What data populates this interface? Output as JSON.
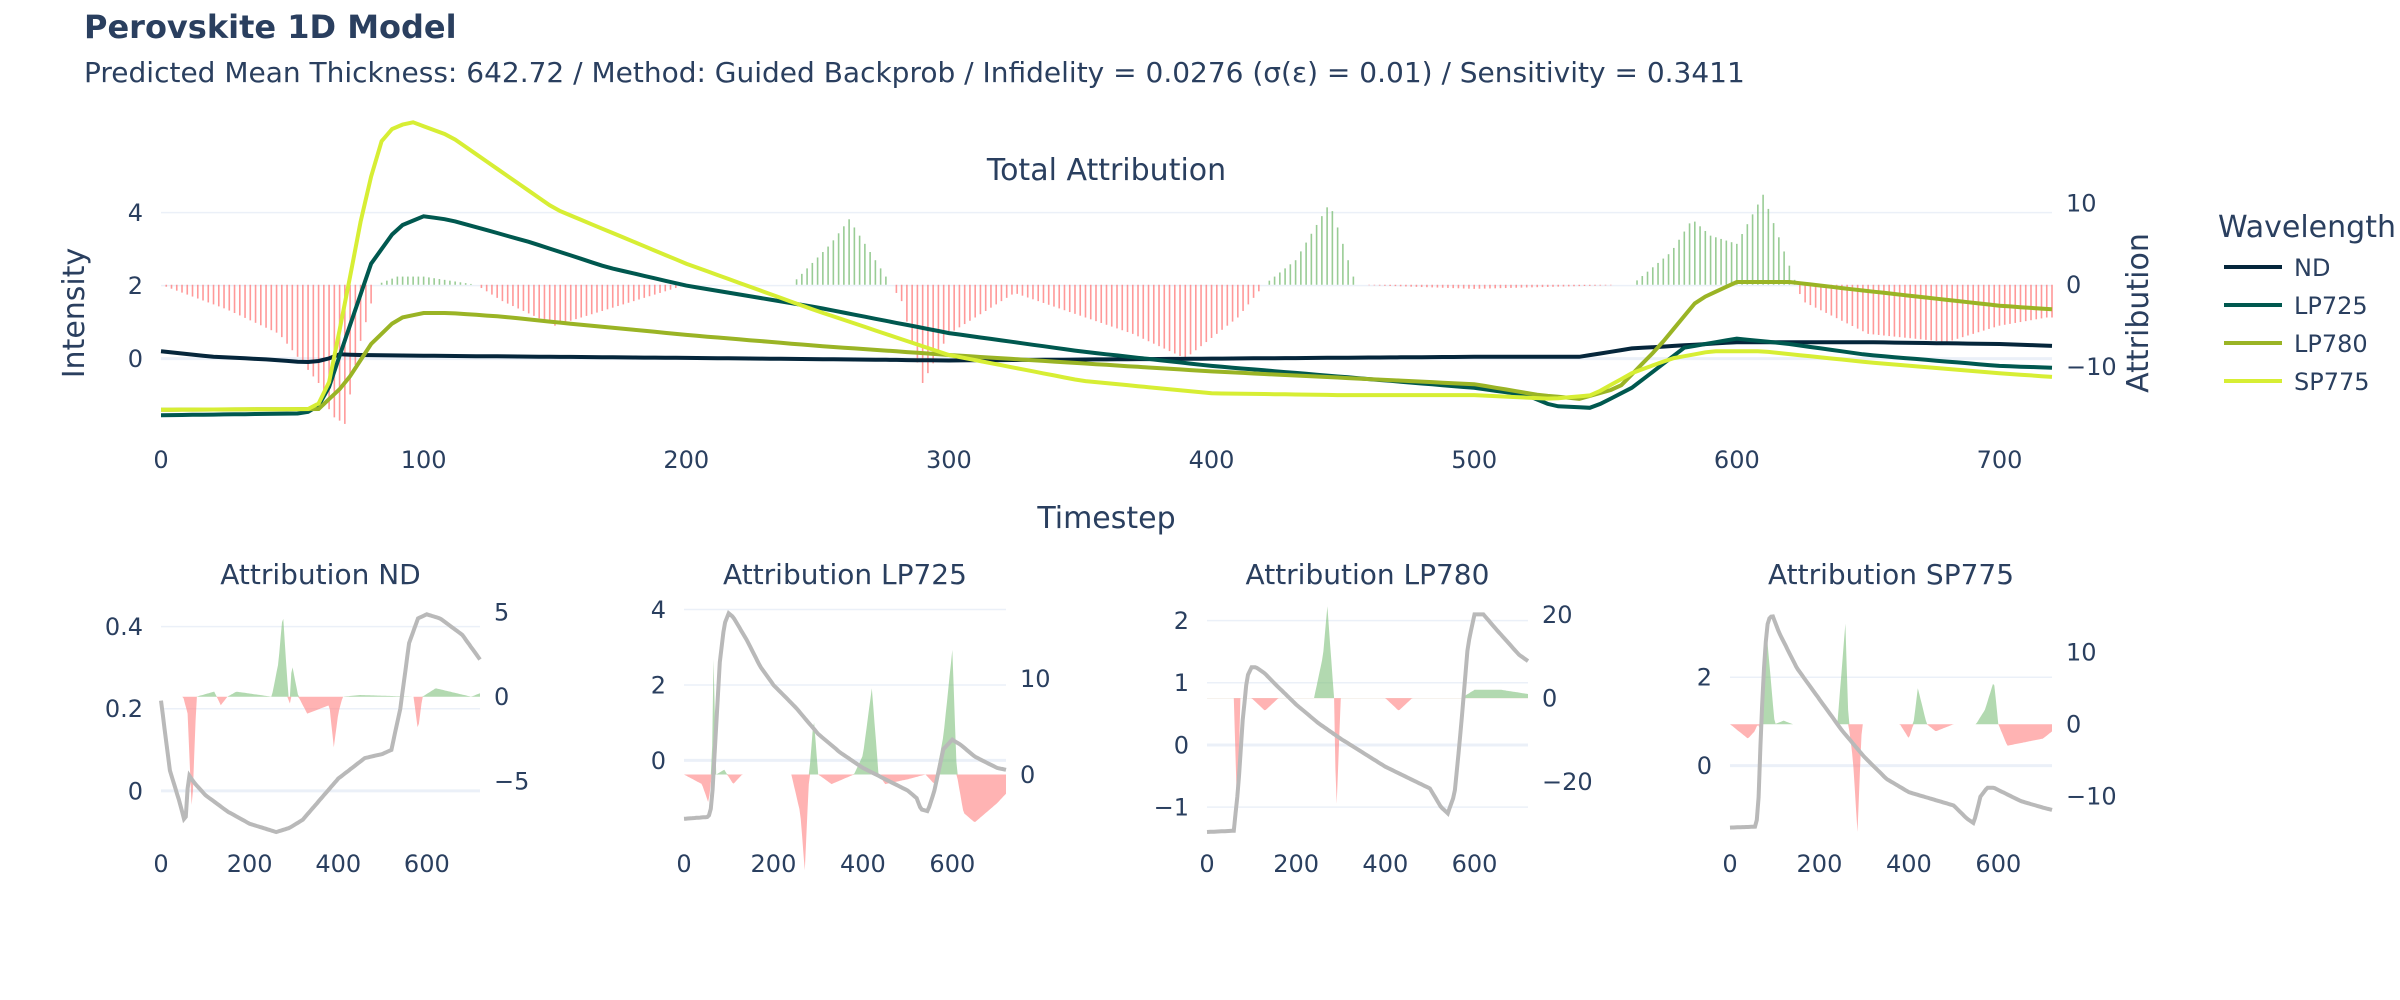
{
  "title": "Perovskite 1D Model",
  "subtitle": "Predicted Mean Thickness: 642.72 / Method: Guided Backprob / Infidelity = 0.0276 (σ(ε) = 0.01) / Sensitivity = 0.3411",
  "colors": {
    "ND": "#05263b",
    "LP725": "#00584f",
    "LP780": "#9ab425",
    "SP775": "#d7ee34",
    "positive": "#7fbf7b",
    "negative": "#ff8080",
    "intensity": "#b9b9b9"
  },
  "chart_data": [
    {
      "type": "line+bar",
      "title": "Total Attribution",
      "xlabel": "Timestep",
      "ylabel": "Intensity",
      "y2label": "Attribution",
      "xlim": [
        0,
        720
      ],
      "ylim": [
        -1.9,
        4.4
      ],
      "y2lim": [
        -17.5,
        10.6
      ],
      "xticks": [
        0,
        100,
        200,
        300,
        400,
        500,
        600,
        700
      ],
      "yticks": [
        0,
        2,
        4
      ],
      "y2ticks": [
        -10,
        0,
        10
      ],
      "legend": {
        "title": "Wavelength",
        "position": "right"
      },
      "series": [
        {
          "name": "ND",
          "x": [
            0,
            20,
            40,
            55,
            62,
            68,
            75,
            100,
            200,
            300,
            400,
            500,
            540,
            560,
            600,
            650,
            700,
            720
          ],
          "y": [
            0.2,
            0.05,
            -0.02,
            -0.1,
            -0.05,
            0.12,
            0.1,
            0.08,
            0.02,
            -0.05,
            0.0,
            0.05,
            0.05,
            0.28,
            0.45,
            0.45,
            0.4,
            0.35
          ]
        },
        {
          "name": "LP725",
          "x": [
            0,
            55,
            62,
            70,
            80,
            90,
            100,
            110,
            140,
            170,
            200,
            250,
            300,
            350,
            400,
            450,
            500,
            520,
            530,
            545,
            560,
            580,
            600,
            620,
            650,
            700,
            720
          ],
          "y": [
            -1.55,
            -1.5,
            -1.2,
            0.5,
            2.6,
            3.6,
            3.9,
            3.8,
            3.2,
            2.5,
            2.0,
            1.4,
            0.7,
            0.2,
            -0.2,
            -0.5,
            -0.8,
            -1.0,
            -1.3,
            -1.35,
            -0.8,
            0.3,
            0.55,
            0.4,
            0.1,
            -0.2,
            -0.25
          ]
        },
        {
          "name": "LP780",
          "x": [
            0,
            60,
            70,
            80,
            90,
            100,
            110,
            130,
            150,
            200,
            250,
            300,
            400,
            500,
            525,
            540,
            555,
            570,
            585,
            600,
            620,
            650,
            700,
            720
          ],
          "y": [
            -1.4,
            -1.38,
            -0.7,
            0.4,
            1.1,
            1.25,
            1.25,
            1.15,
            1.0,
            0.65,
            0.35,
            0.1,
            -0.35,
            -0.7,
            -1.0,
            -1.1,
            -0.8,
            0.3,
            1.6,
            2.1,
            2.1,
            1.85,
            1.45,
            1.35
          ]
        },
        {
          "name": "SP775",
          "x": [
            0,
            58,
            63,
            70,
            78,
            85,
            95,
            110,
            150,
            200,
            250,
            300,
            350,
            400,
            450,
            500,
            530,
            545,
            560,
            575,
            590,
            610,
            650,
            700,
            720
          ],
          "y": [
            -1.4,
            -1.38,
            -1.0,
            1.5,
            4.5,
            6.2,
            6.5,
            6.1,
            4.1,
            2.6,
            1.3,
            0.1,
            -0.6,
            -0.95,
            -1.0,
            -1.0,
            -1.1,
            -1.0,
            -0.4,
            0.0,
            0.2,
            0.2,
            -0.1,
            -0.4,
            -0.5
          ]
        }
      ],
      "attribution": {
        "x": [
          0,
          25,
          45,
          60,
          65,
          70,
          75,
          82,
          90,
          100,
          110,
          120,
          130,
          150,
          170,
          190,
          200,
          240,
          255,
          262,
          270,
          282,
          290,
          300,
          325,
          370,
          390,
          410,
          420,
          432,
          445,
          455,
          500,
          560,
          575,
          583,
          590,
          600,
          610,
          625,
          650,
          680,
          700,
          718
        ],
        "y": [
          0,
          -3,
          -6,
          -12,
          -16,
          -17,
          -8,
          0,
          1,
          1,
          0.5,
          0,
          -2,
          -5,
          -3,
          -1,
          0,
          0,
          5,
          8,
          4,
          -2,
          -12,
          -6,
          -1,
          -6,
          -9,
          -4,
          0,
          3,
          10,
          0,
          -0.5,
          0,
          4,
          8,
          6,
          5,
          11,
          -2,
          -6,
          -7,
          -5,
          -4
        ]
      }
    },
    {
      "type": "line+area",
      "title": "Attribution ND",
      "xlim": [
        0,
        720
      ],
      "ylim": [
        -0.1,
        0.46
      ],
      "y2lim": [
        -8,
        5.6
      ],
      "xticks": [
        0,
        200,
        400,
        600
      ],
      "yticks": [
        0,
        0.2,
        0.4
      ],
      "y2ticks": [
        -5,
        0,
        5
      ],
      "intensity": {
        "x": [
          0,
          20,
          40,
          55,
          62,
          75,
          100,
          150,
          200,
          260,
          290,
          320,
          400,
          460,
          500,
          520,
          540,
          560,
          580,
          600,
          630,
          680,
          720
        ],
        "y": [
          0.22,
          0.05,
          -0.02,
          -0.08,
          0.04,
          0.02,
          -0.01,
          -0.05,
          -0.08,
          -0.1,
          -0.09,
          -0.07,
          0.03,
          0.08,
          0.09,
          0.1,
          0.2,
          0.36,
          0.42,
          0.43,
          0.42,
          0.38,
          0.32
        ]
      },
      "attribution": {
        "x": [
          0,
          50,
          60,
          70,
          80,
          120,
          135,
          150,
          170,
          250,
          265,
          275,
          285,
          290,
          295,
          310,
          330,
          380,
          390,
          400,
          410,
          450,
          570,
          580,
          590,
          620,
          700,
          720
        ],
        "y": [
          0,
          0,
          -1,
          -7,
          0,
          0.3,
          -0.5,
          0,
          0.3,
          0,
          2,
          5,
          1,
          -1,
          2,
          0,
          -1,
          -0.5,
          -3,
          -1,
          0,
          0.1,
          0,
          -2,
          0,
          0.5,
          0,
          0.2
        ]
      }
    },
    {
      "type": "line+area",
      "title": "Attribution LP725",
      "xlim": [
        0,
        720
      ],
      "ylim": [
        -1.9,
        4.2
      ],
      "y2lim": [
        -6,
        18
      ],
      "xticks": [
        0,
        200,
        400,
        600
      ],
      "yticks": [
        0,
        2,
        4
      ],
      "y2ticks": [
        0,
        10
      ],
      "intensity": {
        "x": [
          0,
          55,
          62,
          70,
          80,
          90,
          100,
          110,
          140,
          170,
          200,
          250,
          300,
          350,
          400,
          450,
          500,
          520,
          530,
          545,
          560,
          580,
          600,
          620,
          650,
          700,
          720
        ],
        "y": [
          -1.55,
          -1.5,
          -1.2,
          0.5,
          2.6,
          3.6,
          3.9,
          3.8,
          3.2,
          2.5,
          2.0,
          1.4,
          0.7,
          0.2,
          -0.2,
          -0.5,
          -0.8,
          -1.0,
          -1.3,
          -1.35,
          -0.8,
          0.3,
          0.55,
          0.4,
          0.1,
          -0.2,
          -0.25
        ]
      },
      "attribution": {
        "x": [
          0,
          40,
          55,
          62,
          66,
          72,
          90,
          110,
          130,
          200,
          240,
          260,
          270,
          280,
          290,
          300,
          330,
          380,
          400,
          420,
          435,
          450,
          500,
          540,
          560,
          580,
          600,
          610,
          625,
          650,
          700,
          720
        ],
        "y": [
          0,
          -1,
          -3,
          0,
          12,
          0,
          0.5,
          -1,
          0,
          0,
          0,
          -4,
          -10,
          0,
          6,
          0,
          -1,
          0,
          2,
          9,
          0,
          -1,
          -0.5,
          0,
          -1,
          4,
          13,
          0,
          -4,
          -5,
          -3,
          -2
        ]
      }
    },
    {
      "type": "line+area",
      "title": "Attribution LP780",
      "xlim": [
        0,
        720
      ],
      "ylim": [
        -1.4,
        2.3
      ],
      "y2lim": [
        -32,
        23
      ],
      "xticks": [
        0,
        200,
        400,
        600
      ],
      "yticks": [
        -1,
        0,
        1,
        2
      ],
      "y2ticks": [
        -20,
        0,
        20
      ],
      "intensity": {
        "x": [
          0,
          60,
          70,
          80,
          90,
          100,
          110,
          130,
          150,
          200,
          250,
          300,
          400,
          500,
          525,
          540,
          555,
          570,
          585,
          600,
          620,
          650,
          700,
          720
        ],
        "y": [
          -1.4,
          -1.38,
          -0.7,
          0.4,
          1.1,
          1.25,
          1.25,
          1.15,
          1.0,
          0.65,
          0.35,
          0.1,
          -0.35,
          -0.7,
          -1.0,
          -1.1,
          -0.8,
          0.3,
          1.6,
          2.1,
          2.1,
          1.85,
          1.45,
          1.35
        ]
      },
      "attribution": {
        "x": [
          0,
          60,
          68,
          75,
          100,
          130,
          160,
          240,
          260,
          270,
          285,
          290,
          300,
          400,
          430,
          460,
          570,
          600,
          660,
          720
        ],
        "y": [
          0,
          0,
          -28,
          0,
          0,
          -3,
          0,
          0,
          10,
          22,
          0,
          -28,
          0,
          0,
          -3,
          0,
          0,
          2,
          2,
          1
        ]
      }
    },
    {
      "type": "line+area",
      "title": "Attribution SP775",
      "xlim": [
        0,
        720
      ],
      "ylim": [
        -1.5,
        3.7
      ],
      "y2lim": [
        -15,
        17
      ],
      "xticks": [
        0,
        200,
        400,
        600
      ],
      "yticks": [
        0,
        2
      ],
      "y2ticks": [
        -10,
        0,
        10
      ],
      "intensity": {
        "x": [
          0,
          58,
          63,
          70,
          78,
          85,
          95,
          110,
          150,
          200,
          250,
          300,
          350,
          400,
          450,
          500,
          530,
          545,
          560,
          575,
          590,
          610,
          650,
          700,
          720
        ],
        "y": [
          -1.4,
          -1.38,
          -1.0,
          1.0,
          2.6,
          3.3,
          3.4,
          3.0,
          2.2,
          1.5,
          0.8,
          0.2,
          -0.3,
          -0.6,
          -0.75,
          -0.9,
          -1.2,
          -1.3,
          -0.7,
          -0.5,
          -0.5,
          -0.6,
          -0.8,
          -0.95,
          -1.0
        ]
      },
      "attribution": {
        "x": [
          0,
          40,
          55,
          62,
          70,
          80,
          100,
          120,
          140,
          240,
          258,
          265,
          275,
          285,
          295,
          310,
          380,
          400,
          410,
          420,
          440,
          460,
          500,
          550,
          570,
          590,
          600,
          620,
          700,
          720
        ],
        "y": [
          0,
          -2,
          -1,
          0,
          -1,
          14,
          0,
          0.5,
          0,
          0,
          14,
          0,
          -5,
          -15,
          0,
          0,
          0,
          -2,
          0,
          5,
          0,
          -1,
          0,
          0,
          2,
          6,
          0,
          -3,
          -2,
          -1
        ]
      }
    }
  ]
}
